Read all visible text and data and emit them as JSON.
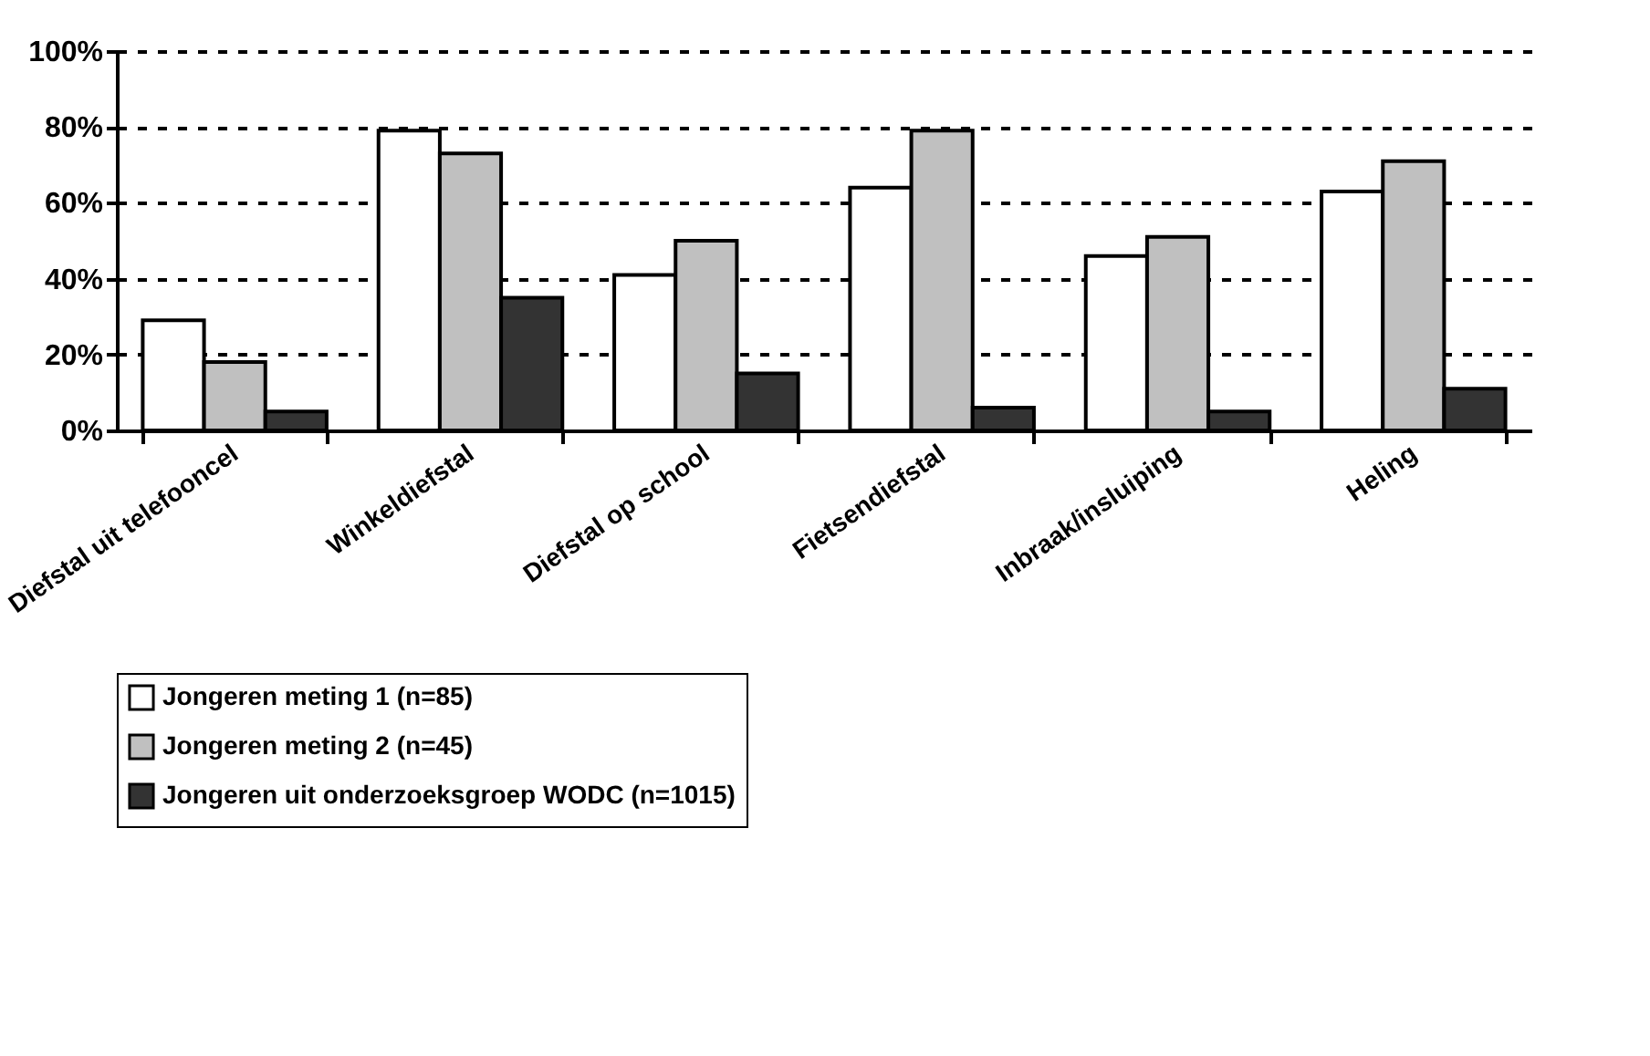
{
  "chart_data": {
    "type": "bar",
    "categories": [
      "Diefstal uit telefooncel",
      "Winkeldiefstal",
      "Diefstal op school",
      "Fietsendiefstal",
      "Inbraak/insluiping",
      "Heling"
    ],
    "series": [
      {
        "name": "Jongeren meting 1 (n=85)",
        "color": "#ffffff",
        "values": [
          29,
          79,
          41,
          64,
          46,
          63
        ]
      },
      {
        "name": "Jongeren meting 2 (n=45)",
        "color": "#c0c0c0",
        "values": [
          18,
          73,
          50,
          79,
          51,
          71
        ]
      },
      {
        "name": "Jongeren uit onderzoeksgroep WODC (n=1015)",
        "color": "#333333",
        "values": [
          5,
          35,
          15,
          6,
          5,
          11
        ]
      }
    ],
    "ylim": [
      0,
      100
    ],
    "yticks": [
      {
        "value": 0,
        "label": "0%"
      },
      {
        "value": 20,
        "label": "20%"
      },
      {
        "value": 40,
        "label": "40%"
      },
      {
        "value": 60,
        "label": "60%"
      },
      {
        "value": 80,
        "label": "80%"
      },
      {
        "value": 100,
        "label": "100%"
      }
    ],
    "grid": "y",
    "legend": "bottom"
  }
}
